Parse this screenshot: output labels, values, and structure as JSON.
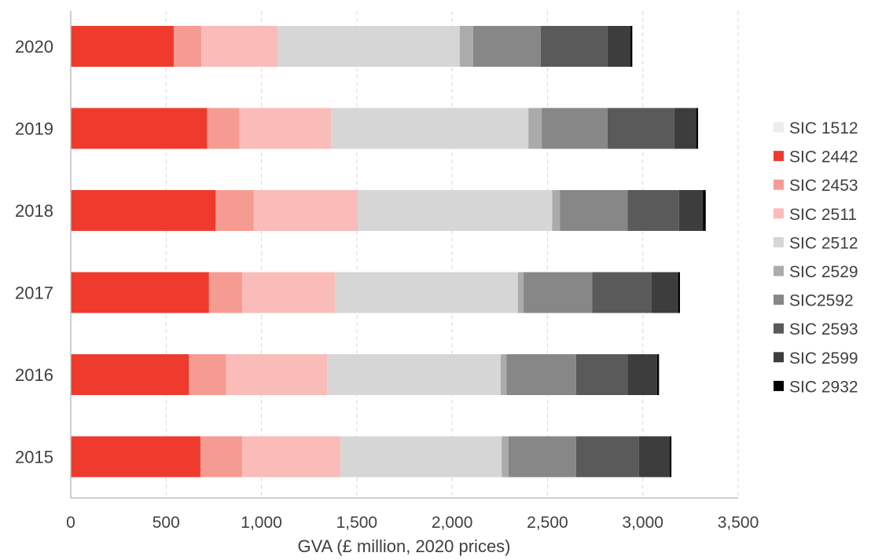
{
  "chart_data": {
    "type": "bar",
    "orientation": "horizontal",
    "stacked": true,
    "title": "",
    "xlabel": "GVA (£ million, 2020 prices)",
    "ylabel": "",
    "xlim": [
      0,
      3500
    ],
    "xticks": [
      0,
      500,
      1000,
      1500,
      2000,
      2500,
      3000,
      3500
    ],
    "xtick_labels": [
      "0",
      "500",
      "1,000",
      "1,500",
      "2,000",
      "2,500",
      "3,000",
      "3,500"
    ],
    "grid": "vertical dashed",
    "legend_position": "right",
    "categories": [
      "2020",
      "2019",
      "2018",
      "2017",
      "2016",
      "2015"
    ],
    "series": [
      {
        "name": "SIC 1512",
        "color": "#ececec",
        "values": [
          0,
          0,
          0,
          0,
          0,
          0
        ]
      },
      {
        "name": "SIC 2442",
        "color": "#ee3b2d",
        "values": [
          540,
          715,
          760,
          725,
          620,
          680
        ]
      },
      {
        "name": "SIC 2453",
        "color": "#f59b92",
        "values": [
          145,
          170,
          200,
          175,
          195,
          220
        ]
      },
      {
        "name": "SIC 2511",
        "color": "#f9bcb8",
        "values": [
          400,
          480,
          545,
          485,
          530,
          515
        ]
      },
      {
        "name": "SIC 2512",
        "color": "#d6d6d6",
        "values": [
          955,
          1035,
          1020,
          960,
          910,
          845
        ]
      },
      {
        "name": "SIC 2529",
        "color": "#ababab",
        "values": [
          70,
          70,
          40,
          30,
          30,
          35
        ]
      },
      {
        "name": "SIC2592",
        "color": "#878787",
        "values": [
          355,
          345,
          355,
          360,
          365,
          355
        ]
      },
      {
        "name": "SIC 2593",
        "color": "#5a5a5a",
        "values": [
          350,
          350,
          270,
          310,
          270,
          330
        ]
      },
      {
        "name": "SIC 2599",
        "color": "#3d3d3d",
        "values": [
          120,
          115,
          125,
          140,
          155,
          160
        ]
      },
      {
        "name": "SIC 2932",
        "color": "#000000",
        "values": [
          10,
          10,
          15,
          10,
          10,
          10
        ]
      }
    ]
  }
}
